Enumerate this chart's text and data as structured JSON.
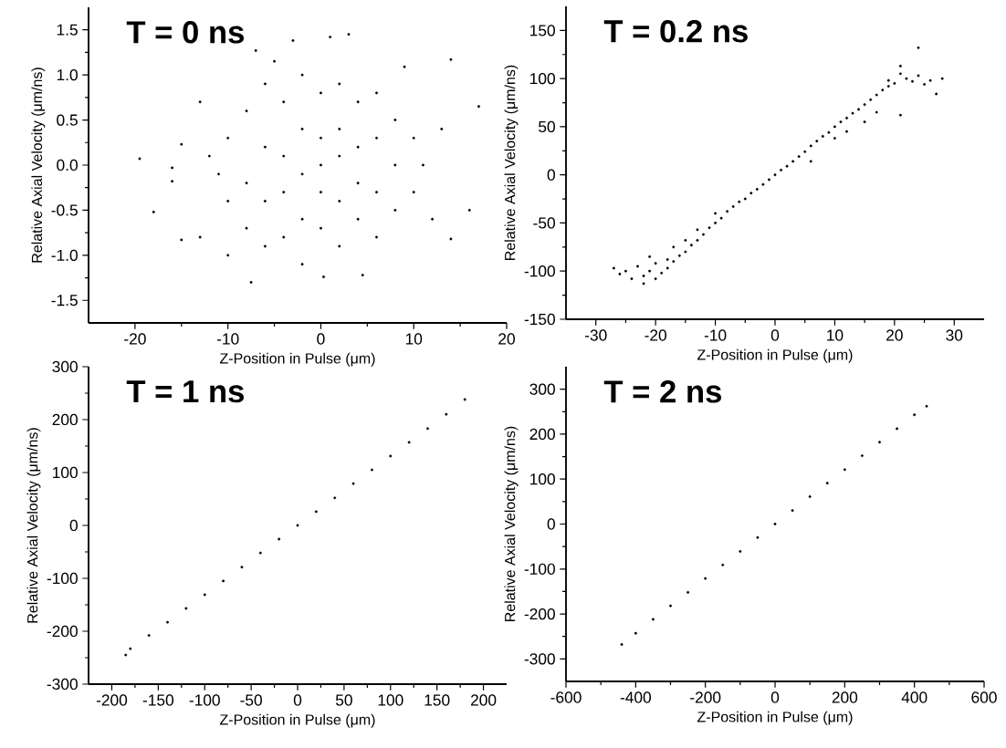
{
  "chart_data": [
    {
      "type": "scatter",
      "title": "T = 0 ns",
      "xlabel": "Z-Position in Pulse (μm)",
      "ylabel": "Relative Axial Velocity (μm/ns)",
      "color": "#000000",
      "xlim": [
        -25,
        20
      ],
      "ylim": [
        -1.75,
        1.75
      ],
      "xticks": [
        -20,
        -10,
        0,
        10,
        20
      ],
      "yticks": [
        {
          "value": -1.5,
          "label": "-1.5"
        },
        {
          "value": -1,
          "label": "-1.0"
        },
        {
          "value": -0.5,
          "label": "-0.5"
        },
        {
          "value": 0,
          "label": "0.0"
        },
        {
          "value": 0.5,
          "label": "0.5"
        },
        {
          "value": 1,
          "label": "1.0"
        },
        {
          "value": 1.5,
          "label": "1.5"
        }
      ],
      "x": [
        -19.5,
        -18,
        -15,
        -16,
        -16,
        -15,
        -13,
        -13,
        -7.5,
        -10,
        -7,
        -3,
        1,
        3,
        14,
        17,
        16,
        14,
        4.5,
        0.3,
        9,
        -5,
        -10,
        -10,
        -8,
        -8,
        -8,
        -6,
        -6,
        -6,
        -6,
        -4,
        -4,
        -4,
        -4,
        -2,
        -2,
        -2,
        -2,
        -2,
        0,
        0,
        0,
        0,
        0,
        2,
        2,
        2,
        2,
        2,
        4,
        4,
        4,
        4,
        6,
        6,
        6,
        6,
        8,
        8,
        8,
        10,
        10,
        11,
        12,
        -11,
        -12,
        13
      ],
      "values": [
        0.07,
        -0.52,
        -0.83,
        -0.18,
        -0.03,
        0.23,
        0.7,
        -0.8,
        -1.3,
        -1.0,
        1.27,
        1.38,
        1.42,
        1.45,
        1.17,
        0.65,
        -0.5,
        -0.82,
        -1.22,
        -1.24,
        1.09,
        1.15,
        0.3,
        -0.4,
        0.6,
        -0.2,
        -0.7,
        0.9,
        0.2,
        -0.4,
        -0.9,
        0.7,
        0.1,
        -0.3,
        -0.8,
        1.0,
        0.4,
        -0.1,
        -0.6,
        -1.1,
        0.8,
        0.3,
        0.0,
        -0.3,
        -0.7,
        0.9,
        0.4,
        0.1,
        -0.4,
        -0.9,
        0.7,
        0.2,
        -0.2,
        -0.6,
        0.8,
        0.3,
        -0.3,
        -0.8,
        0.5,
        0.0,
        -0.5,
        0.3,
        -0.3,
        0.0,
        -0.6,
        -0.1,
        0.1,
        0.4
      ]
    },
    {
      "type": "scatter",
      "title": "T = 0.2 ns",
      "xlabel": "Z-Position in Pulse (μm)",
      "ylabel": "Relative Axial Velocity (μm/ns)",
      "color": "#000000",
      "xlim": [
        -35,
        35
      ],
      "ylim": [
        -150,
        175
      ],
      "xticks": [
        -30,
        -20,
        -10,
        0,
        10,
        20,
        30
      ],
      "yticks": [
        -150,
        -100,
        -50,
        0,
        50,
        100,
        150
      ],
      "x": [
        -27,
        -26,
        -25,
        -24,
        -23,
        -22,
        -22,
        -21,
        -21,
        -20,
        -20,
        -19,
        -18,
        -18,
        -17,
        -17,
        -16,
        -15,
        -15,
        -14,
        -13,
        -13,
        -12,
        -11,
        -10,
        -10,
        -9,
        -8,
        -7,
        -6,
        -5,
        -4,
        -3,
        -2,
        -1,
        0,
        1,
        2,
        3,
        4,
        5,
        6,
        6,
        7,
        8,
        9,
        10,
        10,
        11,
        12,
        12,
        13,
        14,
        15,
        15,
        16,
        17,
        17,
        18,
        19,
        19,
        20,
        21,
        21,
        22,
        23,
        24,
        24,
        25,
        26,
        27,
        28,
        21
      ],
      "values": [
        -97,
        -103,
        -100,
        -108,
        -95,
        -105,
        -113,
        -85,
        -100,
        -92,
        -108,
        -102,
        -88,
        -97,
        -75,
        -90,
        -84,
        -68,
        -80,
        -73,
        -57,
        -68,
        -62,
        -55,
        -40,
        -50,
        -45,
        -38,
        -33,
        -28,
        -25,
        -19,
        -15,
        -10,
        -5,
        0,
        5,
        9,
        14,
        19,
        24,
        30,
        14,
        35,
        40,
        44,
        50,
        38,
        55,
        59,
        45,
        64,
        68,
        73,
        55,
        78,
        83,
        65,
        88,
        92,
        98,
        95,
        105,
        113,
        100,
        97,
        132,
        103,
        94,
        98,
        84,
        100,
        62
      ]
    },
    {
      "type": "scatter",
      "title": "T = 1 ns",
      "xlabel": "Z-Position in Pulse (μm)",
      "ylabel": "Relative Axial Velocity (μm/ns)",
      "color": "#000000",
      "xlim": [
        -225,
        225
      ],
      "ylim": [
        -300,
        300
      ],
      "xticks": [
        -200,
        -150,
        -100,
        -50,
        0,
        50,
        100,
        150,
        200
      ],
      "yticks": [
        -300,
        -200,
        -100,
        0,
        100,
        200,
        300
      ],
      "x": [
        -185,
        -180,
        -160,
        -140,
        -120,
        -100,
        -80,
        -60,
        -40,
        -20,
        0,
        20,
        40,
        60,
        80,
        100,
        120,
        140,
        160,
        180
      ],
      "values": [
        -245,
        -233,
        -208,
        -183,
        -157,
        -131,
        -105,
        -79,
        -52,
        -26,
        0,
        26,
        52,
        79,
        105,
        131,
        157,
        183,
        210,
        238
      ]
    },
    {
      "type": "scatter",
      "title": "T = 2 ns",
      "xlabel": "Z-Position in Pulse (μm)",
      "ylabel": "Relative Axial Velocity (μm/ns)",
      "color": "#000000",
      "xlim": [
        -600,
        600
      ],
      "ylim": [
        -350,
        350
      ],
      "xticks": [
        -600,
        -400,
        -200,
        0,
        200,
        400,
        600
      ],
      "yticks": [
        -300,
        -200,
        -100,
        0,
        100,
        200,
        300
      ],
      "x": [
        -440,
        -400,
        -350,
        -300,
        -250,
        -200,
        -150,
        -100,
        -50,
        0,
        50,
        100,
        150,
        200,
        250,
        300,
        350,
        400,
        435
      ],
      "values": [
        -268,
        -243,
        -212,
        -182,
        -152,
        -121,
        -91,
        -61,
        -30,
        0,
        30,
        61,
        91,
        121,
        152,
        182,
        212,
        243,
        262
      ]
    }
  ]
}
